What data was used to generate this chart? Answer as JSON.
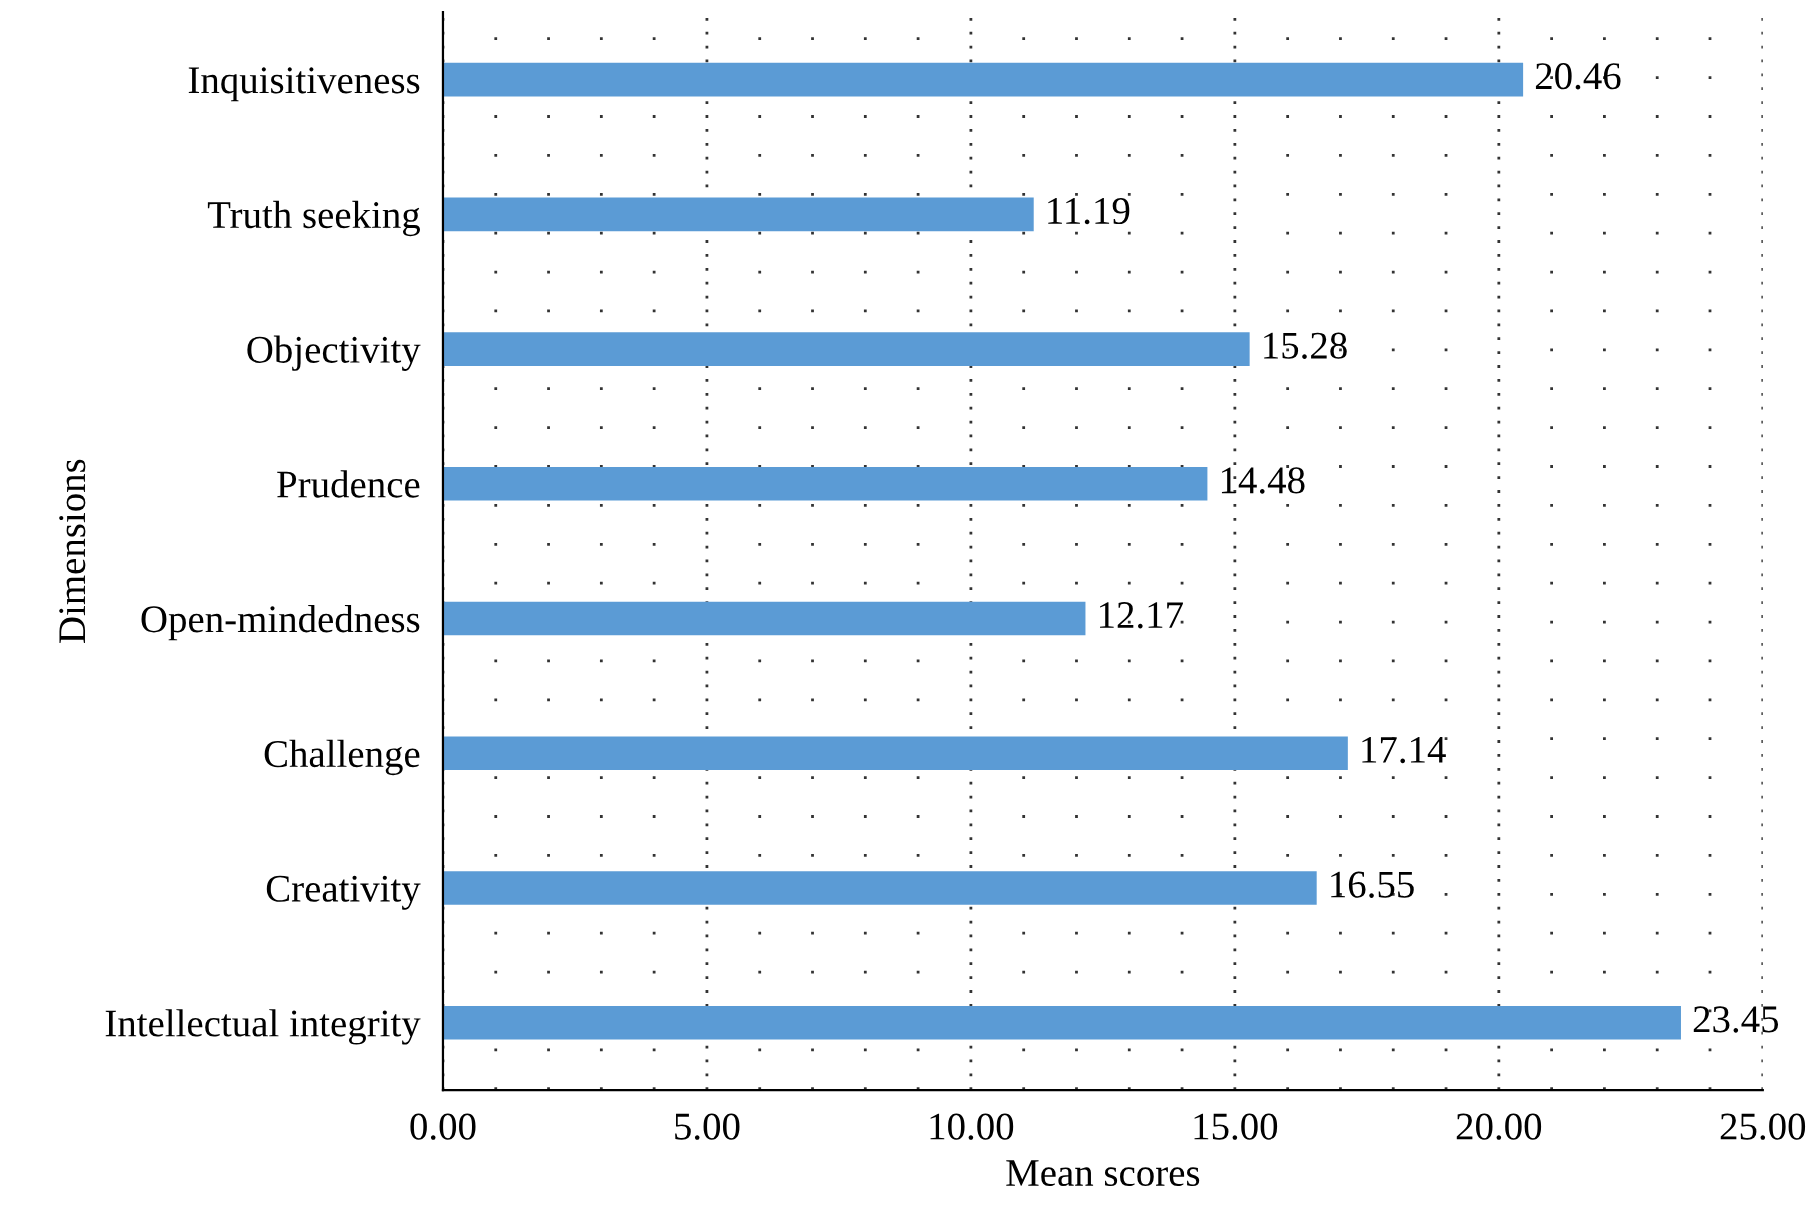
{
  "chart_data": {
    "type": "bar",
    "orientation": "horizontal",
    "xlabel": "Mean scores",
    "ylabel": "Dimensions",
    "categories": [
      "Inquisitiveness",
      "Truth seeking",
      "Objectivity",
      "Prudence",
      "Open-mindedness",
      "Challenge",
      "Creativity",
      "Intellectual integrity"
    ],
    "values": [
      20.46,
      11.19,
      15.28,
      14.48,
      12.17,
      17.14,
      16.55,
      23.45
    ],
    "color": "#5b9bd5",
    "value_labels": [
      "20.46",
      "11.19",
      "15.28",
      "14.48",
      "12.17",
      "17.14",
      "16.55",
      "23.45"
    ],
    "xlim": [
      0,
      25
    ],
    "xticks": [
      {
        "value": 0,
        "label": "0.00"
      },
      {
        "value": 1,
        "label": null
      },
      {
        "value": 2,
        "label": null
      },
      {
        "value": 3,
        "label": null
      },
      {
        "value": 4,
        "label": null
      },
      {
        "value": 5,
        "label": "5.00"
      },
      {
        "value": 6,
        "label": null
      },
      {
        "value": 7,
        "label": null
      },
      {
        "value": 8,
        "label": null
      },
      {
        "value": 9,
        "label": null
      },
      {
        "value": 10,
        "label": "10.00"
      },
      {
        "value": 11,
        "label": null
      },
      {
        "value": 12,
        "label": null
      },
      {
        "value": 13,
        "label": null
      },
      {
        "value": 14,
        "label": null
      },
      {
        "value": 15,
        "label": "15.00"
      },
      {
        "value": 16,
        "label": null
      },
      {
        "value": 17,
        "label": null
      },
      {
        "value": 18,
        "label": null
      },
      {
        "value": 19,
        "label": null
      },
      {
        "value": 20,
        "label": "20.00"
      },
      {
        "value": 21,
        "label": null
      },
      {
        "value": 22,
        "label": null
      },
      {
        "value": 23,
        "label": null
      },
      {
        "value": 24,
        "label": null
      },
      {
        "value": 25,
        "label": "25.00"
      }
    ],
    "grid": "x",
    "legend": false
  }
}
